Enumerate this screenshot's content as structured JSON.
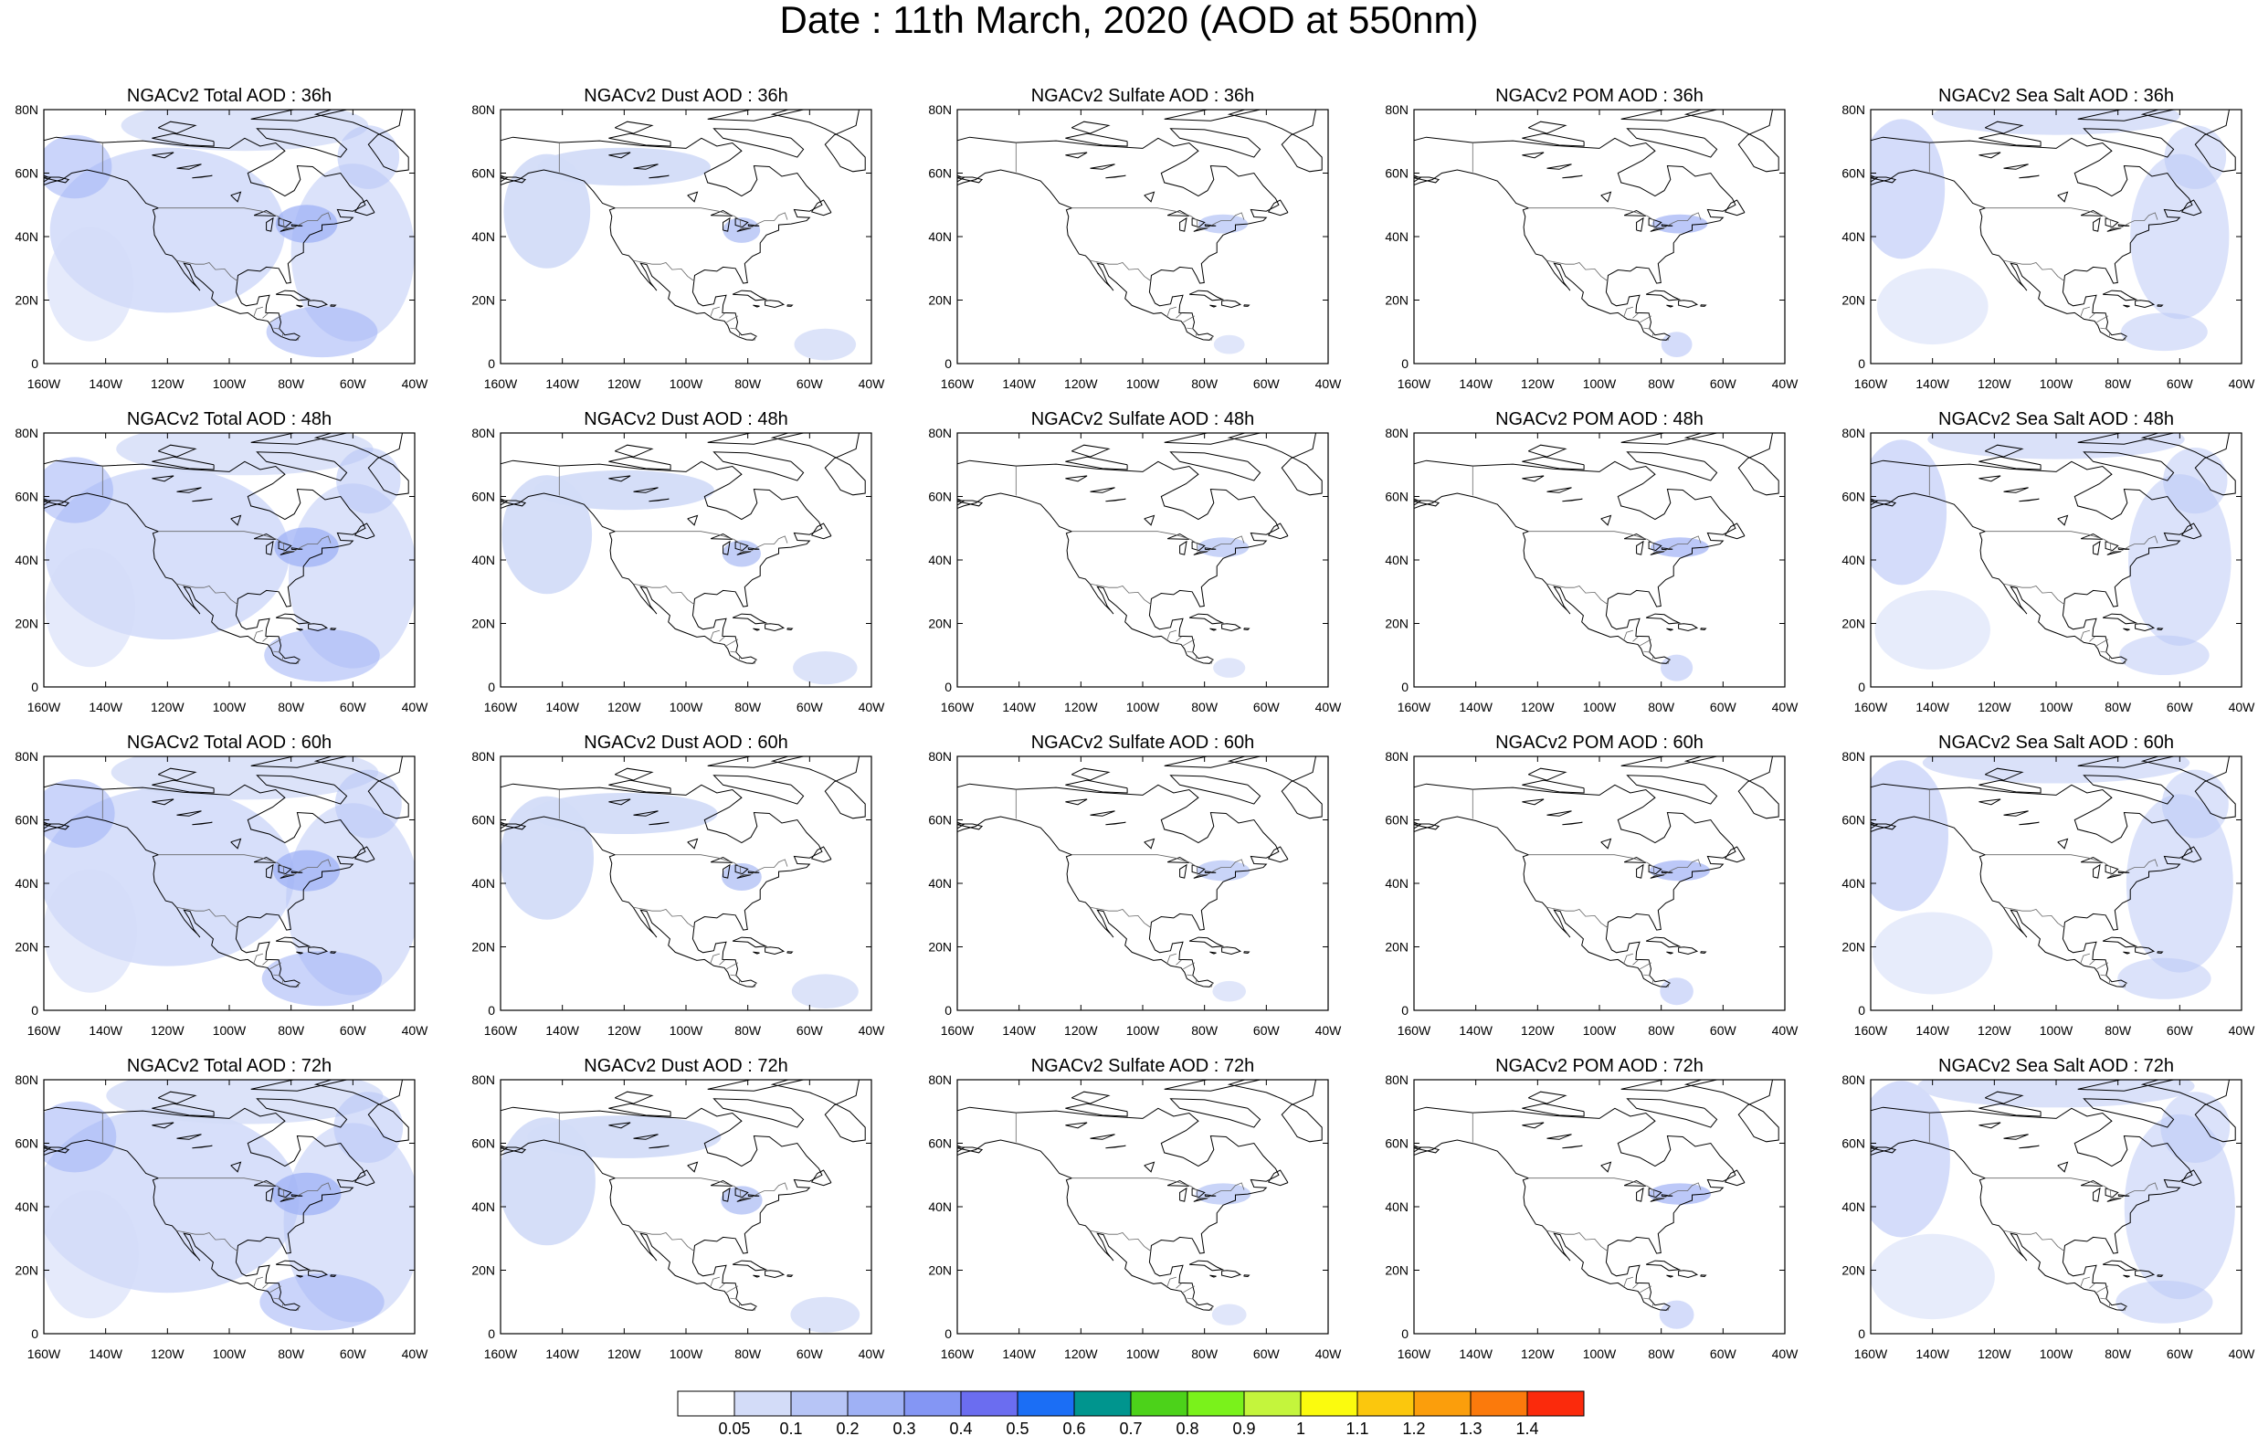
{
  "title": "Date : 11th March, 2020 (AOD at 550nm)",
  "lat_labels": [
    "80N",
    "60N",
    "40N",
    "20N",
    "0"
  ],
  "lon_labels": [
    "160W",
    "140W",
    "120W",
    "100W",
    "80W",
    "60W",
    "40W"
  ],
  "panels": [
    {
      "title": "NGACv2 Total AOD : 36h",
      "species": "total",
      "hour": 36
    },
    {
      "title": "NGACv2 Dust AOD : 36h",
      "species": "dust",
      "hour": 36
    },
    {
      "title": "NGACv2 Sulfate AOD : 36h",
      "species": "sulfate",
      "hour": 36
    },
    {
      "title": "NGACv2 POM AOD : 36h",
      "species": "pom",
      "hour": 36
    },
    {
      "title": "NGACv2 Sea Salt AOD : 36h",
      "species": "seasalt",
      "hour": 36
    },
    {
      "title": "NGACv2 Total AOD : 48h",
      "species": "total",
      "hour": 48
    },
    {
      "title": "NGACv2 Dust AOD : 48h",
      "species": "dust",
      "hour": 48
    },
    {
      "title": "NGACv2 Sulfate AOD : 48h",
      "species": "sulfate",
      "hour": 48
    },
    {
      "title": "NGACv2 POM AOD : 48h",
      "species": "pom",
      "hour": 48
    },
    {
      "title": "NGACv2 Sea Salt AOD : 48h",
      "species": "seasalt",
      "hour": 48
    },
    {
      "title": "NGACv2 Total AOD : 60h",
      "species": "total",
      "hour": 60
    },
    {
      "title": "NGACv2 Dust AOD : 60h",
      "species": "dust",
      "hour": 60
    },
    {
      "title": "NGACv2 Sulfate AOD : 60h",
      "species": "sulfate",
      "hour": 60
    },
    {
      "title": "NGACv2 POM AOD : 60h",
      "species": "pom",
      "hour": 60
    },
    {
      "title": "NGACv2 Sea Salt AOD : 60h",
      "species": "seasalt",
      "hour": 60
    },
    {
      "title": "NGACv2 Total AOD : 72h",
      "species": "total",
      "hour": 72
    },
    {
      "title": "NGACv2 Dust AOD : 72h",
      "species": "dust",
      "hour": 72
    },
    {
      "title": "NGACv2 Sulfate AOD : 72h",
      "species": "sulfate",
      "hour": 72
    },
    {
      "title": "NGACv2 POM AOD : 72h",
      "species": "pom",
      "hour": 72
    },
    {
      "title": "NGACv2 Sea Salt  AOD : 72h",
      "species": "seasalt",
      "hour": 72
    }
  ],
  "colorbar": {
    "colors": [
      "#ffffff",
      "#d3dcf8",
      "#b7c5f6",
      "#9fb1f5",
      "#8496f4",
      "#6b6df0",
      "#1b6ef5",
      "#00958e",
      "#4cd21a",
      "#7af21b",
      "#c4f53c",
      "#fbfb0e",
      "#fbc70d",
      "#fb9e0c",
      "#fb7a0c",
      "#fb2a0c"
    ],
    "labels": [
      "0.05",
      "0.1",
      "0.2",
      "0.3",
      "0.4",
      "0.5",
      "0.6",
      "0.7",
      "0.8",
      "0.9",
      "1",
      "1.1",
      "1.2",
      "1.3",
      "1.4"
    ]
  }
}
